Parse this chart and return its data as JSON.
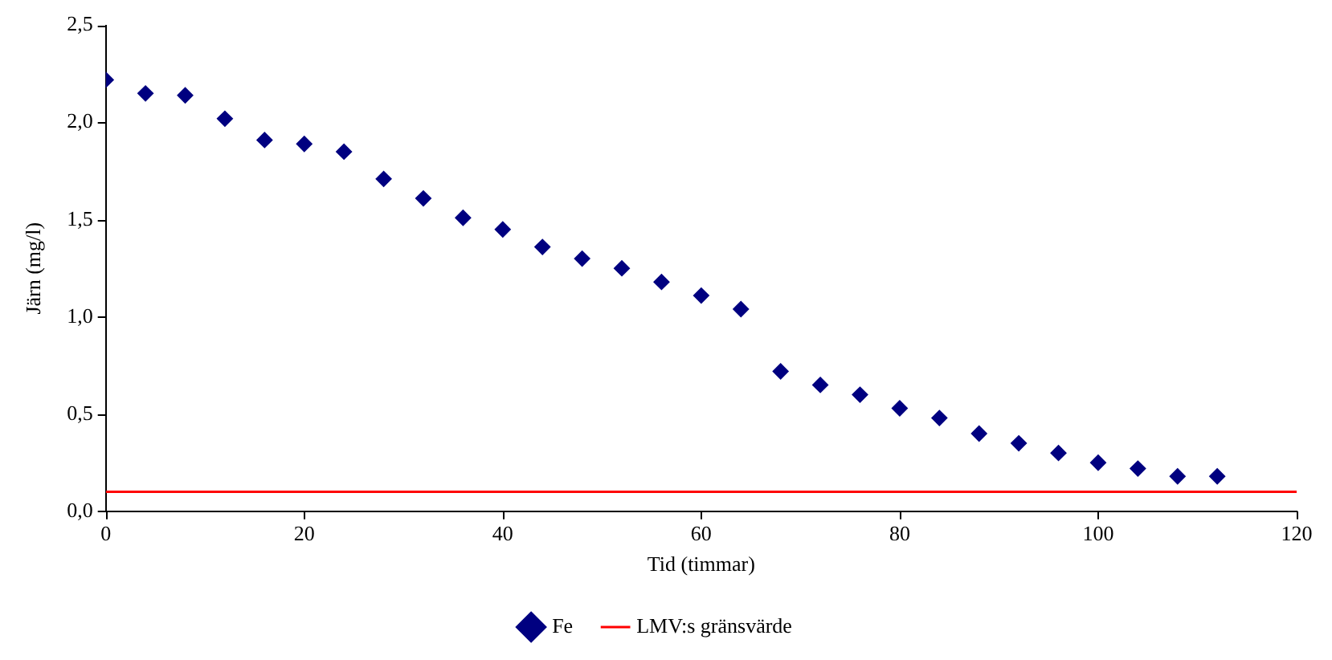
{
  "chart_data": {
    "type": "scatter",
    "xlabel": "Tid (timmar)",
    "ylabel": "Järn (mg/l)",
    "xlim": [
      0,
      120
    ],
    "xticks": [
      0,
      20,
      40,
      60,
      80,
      100,
      120
    ],
    "ylim": [
      0,
      2.5
    ],
    "yticks": [
      {
        "value": 0,
        "label": "0,0"
      },
      {
        "value": 0.5,
        "label": "0,5"
      },
      {
        "value": 1,
        "label": "1,0"
      },
      {
        "value": 1.5,
        "label": "1,5"
      },
      {
        "value": 2,
        "label": "2,0"
      },
      {
        "value": 2.5,
        "label": "2,5"
      }
    ],
    "grid": false,
    "legend": "bottom",
    "marker": "diamond",
    "series": [
      {
        "name": "Fe",
        "type": "scatter",
        "color": "#000080",
        "x": [
          0,
          4,
          8,
          12,
          16,
          20,
          24,
          28,
          32,
          36,
          40,
          44,
          48,
          52,
          56,
          60,
          64,
          68,
          72,
          76,
          80,
          84,
          88,
          92,
          96,
          100,
          104,
          108,
          112
        ],
        "values": [
          2.22,
          2.15,
          2.14,
          2.02,
          1.91,
          1.89,
          1.85,
          1.71,
          1.61,
          1.51,
          1.45,
          1.36,
          1.3,
          1.25,
          1.18,
          1.11,
          1.04,
          0.72,
          0.65,
          0.6,
          0.53,
          0.48,
          0.4,
          0.35,
          0.3,
          0.25,
          0.22,
          0.18,
          0.18
        ]
      },
      {
        "name": "LMV:s gränsvärde",
        "type": "line",
        "color": "#ff0000",
        "marker": "none",
        "line_style": "solid",
        "x": [
          0,
          120
        ],
        "values": [
          0.1,
          0.1
        ]
      }
    ]
  }
}
